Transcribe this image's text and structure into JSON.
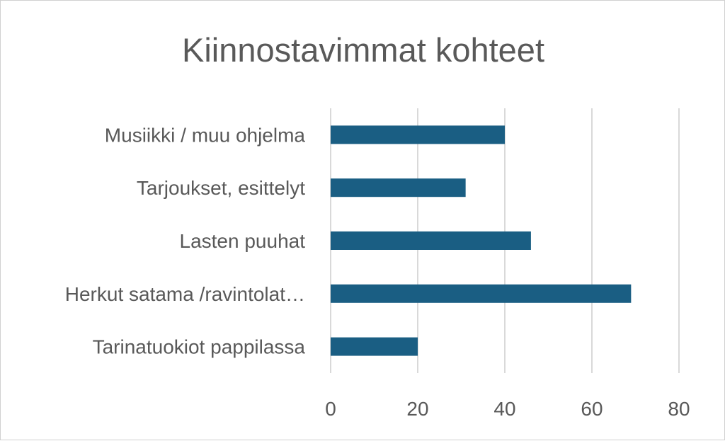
{
  "chart_data": {
    "type": "bar",
    "orientation": "horizontal",
    "title": "Kiinnostavimmat kohteet",
    "categories": [
      "Musiikki / muu ohjelma",
      "Tarjoukset, esittelyt",
      "Lasten puuhat",
      "Herkut satama /ravintolat…",
      "Tarinatuokiot pappilassa"
    ],
    "values": [
      40,
      31,
      46,
      69,
      20
    ],
    "xlim": [
      0,
      80
    ],
    "xticks": [
      "0",
      "20",
      "40",
      "60",
      "80"
    ],
    "xlabel": "",
    "ylabel": "",
    "grid": "vertical",
    "legend": "none",
    "bar_color": "#1a5e83"
  }
}
